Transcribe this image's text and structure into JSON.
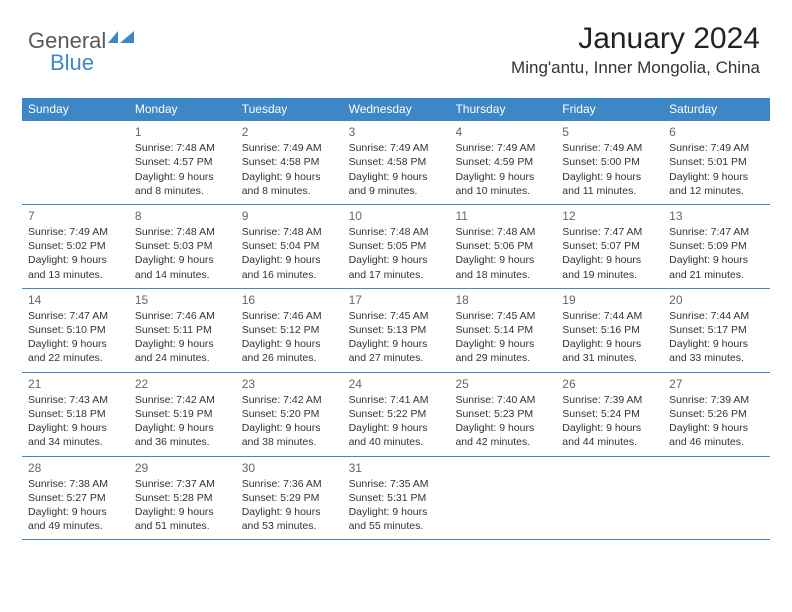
{
  "logo": {
    "text1": "General",
    "text2": "Blue"
  },
  "title": "January 2024",
  "location": "Ming'antu, Inner Mongolia, China",
  "colors": {
    "header_bg": "#3d87c7",
    "header_text": "#ffffff",
    "row_border": "#3d87c7",
    "logo_gray": "#595959",
    "logo_blue": "#3d87c7",
    "text": "#333333",
    "daynum": "#666666",
    "bg": "#ffffff"
  },
  "day_names": [
    "Sunday",
    "Monday",
    "Tuesday",
    "Wednesday",
    "Thursday",
    "Friday",
    "Saturday"
  ],
  "weeks": [
    [
      null,
      {
        "n": "1",
        "sr": "7:48 AM",
        "ss": "4:57 PM",
        "dl": "9 hours and 8 minutes."
      },
      {
        "n": "2",
        "sr": "7:49 AM",
        "ss": "4:58 PM",
        "dl": "9 hours and 8 minutes."
      },
      {
        "n": "3",
        "sr": "7:49 AM",
        "ss": "4:58 PM",
        "dl": "9 hours and 9 minutes."
      },
      {
        "n": "4",
        "sr": "7:49 AM",
        "ss": "4:59 PM",
        "dl": "9 hours and 10 minutes."
      },
      {
        "n": "5",
        "sr": "7:49 AM",
        "ss": "5:00 PM",
        "dl": "9 hours and 11 minutes."
      },
      {
        "n": "6",
        "sr": "7:49 AM",
        "ss": "5:01 PM",
        "dl": "9 hours and 12 minutes."
      }
    ],
    [
      {
        "n": "7",
        "sr": "7:49 AM",
        "ss": "5:02 PM",
        "dl": "9 hours and 13 minutes."
      },
      {
        "n": "8",
        "sr": "7:48 AM",
        "ss": "5:03 PM",
        "dl": "9 hours and 14 minutes."
      },
      {
        "n": "9",
        "sr": "7:48 AM",
        "ss": "5:04 PM",
        "dl": "9 hours and 16 minutes."
      },
      {
        "n": "10",
        "sr": "7:48 AM",
        "ss": "5:05 PM",
        "dl": "9 hours and 17 minutes."
      },
      {
        "n": "11",
        "sr": "7:48 AM",
        "ss": "5:06 PM",
        "dl": "9 hours and 18 minutes."
      },
      {
        "n": "12",
        "sr": "7:47 AM",
        "ss": "5:07 PM",
        "dl": "9 hours and 19 minutes."
      },
      {
        "n": "13",
        "sr": "7:47 AM",
        "ss": "5:09 PM",
        "dl": "9 hours and 21 minutes."
      }
    ],
    [
      {
        "n": "14",
        "sr": "7:47 AM",
        "ss": "5:10 PM",
        "dl": "9 hours and 22 minutes."
      },
      {
        "n": "15",
        "sr": "7:46 AM",
        "ss": "5:11 PM",
        "dl": "9 hours and 24 minutes."
      },
      {
        "n": "16",
        "sr": "7:46 AM",
        "ss": "5:12 PM",
        "dl": "9 hours and 26 minutes."
      },
      {
        "n": "17",
        "sr": "7:45 AM",
        "ss": "5:13 PM",
        "dl": "9 hours and 27 minutes."
      },
      {
        "n": "18",
        "sr": "7:45 AM",
        "ss": "5:14 PM",
        "dl": "9 hours and 29 minutes."
      },
      {
        "n": "19",
        "sr": "7:44 AM",
        "ss": "5:16 PM",
        "dl": "9 hours and 31 minutes."
      },
      {
        "n": "20",
        "sr": "7:44 AM",
        "ss": "5:17 PM",
        "dl": "9 hours and 33 minutes."
      }
    ],
    [
      {
        "n": "21",
        "sr": "7:43 AM",
        "ss": "5:18 PM",
        "dl": "9 hours and 34 minutes."
      },
      {
        "n": "22",
        "sr": "7:42 AM",
        "ss": "5:19 PM",
        "dl": "9 hours and 36 minutes."
      },
      {
        "n": "23",
        "sr": "7:42 AM",
        "ss": "5:20 PM",
        "dl": "9 hours and 38 minutes."
      },
      {
        "n": "24",
        "sr": "7:41 AM",
        "ss": "5:22 PM",
        "dl": "9 hours and 40 minutes."
      },
      {
        "n": "25",
        "sr": "7:40 AM",
        "ss": "5:23 PM",
        "dl": "9 hours and 42 minutes."
      },
      {
        "n": "26",
        "sr": "7:39 AM",
        "ss": "5:24 PM",
        "dl": "9 hours and 44 minutes."
      },
      {
        "n": "27",
        "sr": "7:39 AM",
        "ss": "5:26 PM",
        "dl": "9 hours and 46 minutes."
      }
    ],
    [
      {
        "n": "28",
        "sr": "7:38 AM",
        "ss": "5:27 PM",
        "dl": "9 hours and 49 minutes."
      },
      {
        "n": "29",
        "sr": "7:37 AM",
        "ss": "5:28 PM",
        "dl": "9 hours and 51 minutes."
      },
      {
        "n": "30",
        "sr": "7:36 AM",
        "ss": "5:29 PM",
        "dl": "9 hours and 53 minutes."
      },
      {
        "n": "31",
        "sr": "7:35 AM",
        "ss": "5:31 PM",
        "dl": "9 hours and 55 minutes."
      },
      null,
      null,
      null
    ]
  ],
  "labels": {
    "sunrise": "Sunrise:",
    "sunset": "Sunset:",
    "daylight": "Daylight:"
  }
}
